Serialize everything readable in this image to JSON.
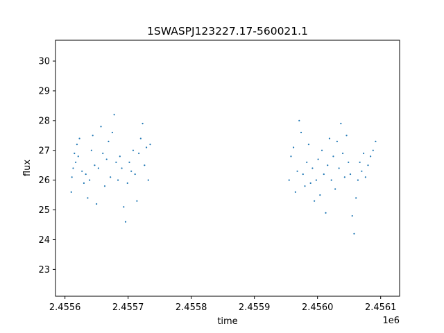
{
  "chart_data": {
    "type": "scatter",
    "title": "1SWASPJ123227.17-560021.1",
    "xlabel": "time",
    "ylabel": "flux",
    "x_offset_label": "1e6",
    "xlim": [
      2455585,
      2456130
    ],
    "ylim": [
      22.1,
      30.7
    ],
    "x_ticks": [
      2455600,
      2455700,
      2455800,
      2455900,
      2456000,
      2456100
    ],
    "x_tick_labels": [
      "2.4556",
      "2.4557",
      "2.4558",
      "2.4559",
      "2.4560",
      "2.4561"
    ],
    "y_ticks": [
      23,
      24,
      25,
      26,
      27,
      28,
      29,
      30
    ],
    "y_tick_labels": [
      "23",
      "24",
      "25",
      "26",
      "27",
      "28",
      "29",
      "30"
    ],
    "grid": false,
    "legend": "none",
    "marker_color": "#1f77b4",
    "series": [
      {
        "values": [
          [
            2455610,
            25.6
          ],
          [
            2455611,
            26.1
          ],
          [
            2455613,
            26.4
          ],
          [
            2455615,
            26.9
          ],
          [
            2455617,
            26.6
          ],
          [
            2455619,
            27.2
          ],
          [
            2455621,
            26.8
          ],
          [
            2455623,
            27.4
          ],
          [
            2455627,
            26.3
          ],
          [
            2455630,
            25.9
          ],
          [
            2455633,
            26.2
          ],
          [
            2455636,
            25.4
          ],
          [
            2455639,
            26.0
          ],
          [
            2455642,
            27.0
          ],
          [
            2455644,
            27.5
          ],
          [
            2455647,
            26.5
          ],
          [
            2455650,
            25.2
          ],
          [
            2455653,
            26.4
          ],
          [
            2455657,
            27.8
          ],
          [
            2455660,
            26.9
          ],
          [
            2455663,
            25.8
          ],
          [
            2455666,
            26.7
          ],
          [
            2455669,
            27.3
          ],
          [
            2455672,
            26.1
          ],
          [
            2455675,
            27.6
          ],
          [
            2455678,
            28.2
          ],
          [
            2455681,
            26.6
          ],
          [
            2455684,
            26.0
          ],
          [
            2455687,
            26.8
          ],
          [
            2455690,
            26.4
          ],
          [
            2455693,
            25.1
          ],
          [
            2455696,
            24.6
          ],
          [
            2455699,
            25.9
          ],
          [
            2455702,
            26.6
          ],
          [
            2455705,
            26.3
          ],
          [
            2455708,
            27.0
          ],
          [
            2455711,
            26.2
          ],
          [
            2455714,
            25.3
          ],
          [
            2455717,
            26.9
          ],
          [
            2455720,
            27.4
          ],
          [
            2455723,
            27.9
          ],
          [
            2455726,
            26.5
          ],
          [
            2455729,
            27.1
          ],
          [
            2455732,
            26.0
          ],
          [
            2455735,
            27.2
          ]
        ]
      },
      {
        "values": [
          [
            2455955,
            26.0
          ],
          [
            2455958,
            26.8
          ],
          [
            2455962,
            27.1
          ],
          [
            2455965,
            25.6
          ],
          [
            2455968,
            26.3
          ],
          [
            2455971,
            28.0
          ],
          [
            2455974,
            27.6
          ],
          [
            2455977,
            26.2
          ],
          [
            2455980,
            25.8
          ],
          [
            2455983,
            26.6
          ],
          [
            2455986,
            27.2
          ],
          [
            2455989,
            25.9
          ],
          [
            2455992,
            26.4
          ],
          [
            2455995,
            25.3
          ],
          [
            2455998,
            26.0
          ],
          [
            2456001,
            26.7
          ],
          [
            2456004,
            25.5
          ],
          [
            2456007,
            27.0
          ],
          [
            2456010,
            26.2
          ],
          [
            2456013,
            24.9
          ],
          [
            2456016,
            26.5
          ],
          [
            2456019,
            27.4
          ],
          [
            2456022,
            26.0
          ],
          [
            2456025,
            26.8
          ],
          [
            2456028,
            25.7
          ],
          [
            2456031,
            27.3
          ],
          [
            2456034,
            26.4
          ],
          [
            2456037,
            27.9
          ],
          [
            2456040,
            26.9
          ],
          [
            2456043,
            26.1
          ],
          [
            2456046,
            27.5
          ],
          [
            2456049,
            26.6
          ],
          [
            2456052,
            26.2
          ],
          [
            2456055,
            24.8
          ],
          [
            2456058,
            24.2
          ],
          [
            2456061,
            25.4
          ],
          [
            2456064,
            26.0
          ],
          [
            2456067,
            26.6
          ],
          [
            2456070,
            26.3
          ],
          [
            2456073,
            26.9
          ],
          [
            2456076,
            26.1
          ],
          [
            2456080,
            26.5
          ],
          [
            2456084,
            26.8
          ],
          [
            2456088,
            27.0
          ],
          [
            2456092,
            27.3
          ]
        ]
      }
    ]
  }
}
